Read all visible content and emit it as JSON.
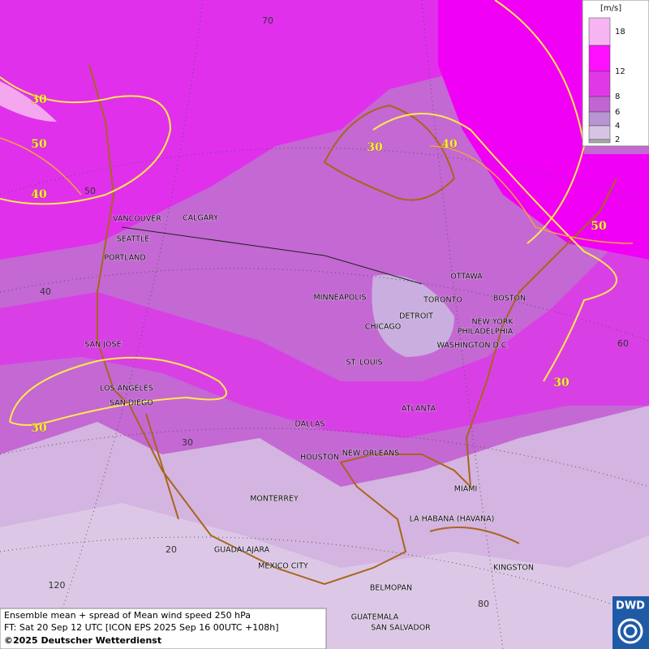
{
  "legend": {
    "unit": "[m/s]",
    "labels": [
      "18",
      "12",
      "8",
      "6",
      "4",
      "2"
    ]
  },
  "contour_labels": [
    "30",
    "50",
    "40",
    "30",
    "40",
    "50",
    "30",
    "30"
  ],
  "graticule_labels": [
    "70",
    "50",
    "40",
    "60",
    "30",
    "20",
    "120",
    "80"
  ],
  "cities": [
    "VANCOUVER",
    "CALGARY",
    "SEATTLE",
    "PORTLAND",
    "MINNEAPOLIS",
    "TORONTO",
    "OTTAWA",
    "BOSTON",
    "DETROIT",
    "CHICAGO",
    "NEW YORK",
    "PHILADELPHIA",
    "WASHINGTON D.C.",
    "SAN JOSE",
    "ST. LOUIS",
    "LOS ANGELES",
    "SAN DIEGO",
    "ATLANTA",
    "DALLAS",
    "HOUSTON",
    "NEW ORLEANS",
    "MIAMI",
    "MONTERREY",
    "LA HABANA (HAVANA)",
    "GUADALAJARA",
    "MEXICO CITY",
    "KINGSTON",
    "BELMOPAN",
    "GUATEMALA",
    "SAN SALVADOR"
  ],
  "caption": {
    "line1": "Ensemble mean + spread of Mean wind speed 250 hPa",
    "line2": "FT: Sat 20 Sep 12 UTC [ICON EPS 2025 Sep 16 00UTC +108h]",
    "line3": "©2025 Deutscher Wetterdienst"
  },
  "logo": "DWD"
}
